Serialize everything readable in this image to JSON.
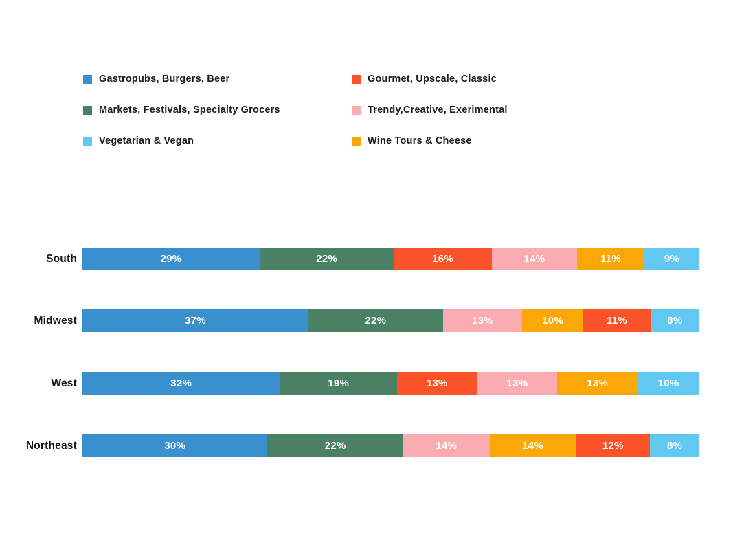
{
  "legend": {
    "columns": [
      {
        "items": [
          {
            "label": "Gastropubs, Burgers, Beer",
            "color": "#3A90CE"
          },
          {
            "label": "Markets, Festivals, Specialty Grocers",
            "color": "#4A8164"
          },
          {
            "label": "Vegetarian & Vegan",
            "color": "#61C9F1"
          }
        ]
      },
      {
        "items": [
          {
            "label": "Gourmet, Upscale, Classic",
            "color": "#FB5329"
          },
          {
            "label": "Trendy,Creative, Exerimental",
            "color": "#FBACB2"
          },
          {
            "label": "Wine Tours & Cheese",
            "color": "#FCA708"
          }
        ]
      }
    ]
  },
  "chart_data": {
    "type": "bar",
    "orientation": "horizontal",
    "stacked": true,
    "title": "",
    "xlabel": "",
    "ylabel": "",
    "grid": false,
    "legend_position": "top",
    "value_format": "percent",
    "categories": [
      "South",
      "Midwest",
      "West",
      "Northeast"
    ],
    "series": [
      {
        "name": "Gastropubs, Burgers, Beer",
        "color": "#3A90CE"
      },
      {
        "name": "Markets, Festivals, Specialty Grocers",
        "color": "#4A8164"
      },
      {
        "name": "Gourmet, Upscale, Classic",
        "color": "#FB5329"
      },
      {
        "name": "Trendy,Creative, Exerimental",
        "color": "#FBACB2"
      },
      {
        "name": "Wine Tours & Cheese",
        "color": "#FCA708"
      },
      {
        "name": "Vegetarian & Vegan",
        "color": "#61C9F1"
      }
    ],
    "rows": [
      {
        "category": "South",
        "segments": [
          {
            "name": "Gastropubs, Burgers, Beer",
            "value": 29,
            "label": "29%",
            "color": "#3A90CE"
          },
          {
            "name": "Markets, Festivals, Specialty Grocers",
            "value": 22,
            "label": "22%",
            "color": "#4A8164"
          },
          {
            "name": "Gourmet, Upscale, Classic",
            "value": 16,
            "label": "16%",
            "color": "#FB5329"
          },
          {
            "name": "Trendy,Creative, Exerimental",
            "value": 14,
            "label": "14%",
            "color": "#FBACB2"
          },
          {
            "name": "Wine Tours & Cheese",
            "value": 11,
            "label": "11%",
            "color": "#FCA708"
          },
          {
            "name": "Vegetarian & Vegan",
            "value": 9,
            "label": "9%",
            "color": "#61C9F1"
          }
        ]
      },
      {
        "category": "Midwest",
        "segments": [
          {
            "name": "Gastropubs, Burgers, Beer",
            "value": 37,
            "label": "37%",
            "color": "#3A90CE"
          },
          {
            "name": "Markets, Festivals, Specialty Grocers",
            "value": 22,
            "label": "22%",
            "color": "#4A8164"
          },
          {
            "name": "Trendy,Creative, Exerimental",
            "value": 13,
            "label": "13%",
            "color": "#FBACB2"
          },
          {
            "name": "Wine Tours & Cheese",
            "value": 10,
            "label": "10%",
            "color": "#FCA708"
          },
          {
            "name": "Gourmet, Upscale, Classic",
            "value": 11,
            "label": "11%",
            "color": "#FB5329"
          },
          {
            "name": "Vegetarian & Vegan",
            "value": 8,
            "label": "8%",
            "color": "#61C9F1"
          }
        ]
      },
      {
        "category": "West",
        "segments": [
          {
            "name": "Gastropubs, Burgers, Beer",
            "value": 32,
            "label": "32%",
            "color": "#3A90CE"
          },
          {
            "name": "Markets, Festivals, Specialty Grocers",
            "value": 19,
            "label": "19%",
            "color": "#4A8164"
          },
          {
            "name": "Gourmet, Upscale, Classic",
            "value": 13,
            "label": "13%",
            "color": "#FB5329"
          },
          {
            "name": "Trendy,Creative, Exerimental",
            "value": 13,
            "label": "13%",
            "color": "#FBACB2"
          },
          {
            "name": "Wine Tours & Cheese",
            "value": 13,
            "label": "13%",
            "color": "#FCA708"
          },
          {
            "name": "Vegetarian & Vegan",
            "value": 10,
            "label": "10%",
            "color": "#61C9F1"
          }
        ]
      },
      {
        "category": "Northeast",
        "segments": [
          {
            "name": "Gastropubs, Burgers, Beer",
            "value": 30,
            "label": "30%",
            "color": "#3A90CE"
          },
          {
            "name": "Markets, Festivals, Specialty Grocers",
            "value": 22,
            "label": "22%",
            "color": "#4A8164"
          },
          {
            "name": "Trendy,Creative, Exerimental",
            "value": 14,
            "label": "14%",
            "color": "#FBACB2"
          },
          {
            "name": "Wine Tours & Cheese",
            "value": 14,
            "label": "14%",
            "color": "#FCA708"
          },
          {
            "name": "Gourmet, Upscale, Classic",
            "value": 12,
            "label": "12%",
            "color": "#FB5329"
          },
          {
            "name": "Vegetarian & Vegan",
            "value": 8,
            "label": "8%",
            "color": "#61C9F1"
          }
        ]
      }
    ]
  }
}
